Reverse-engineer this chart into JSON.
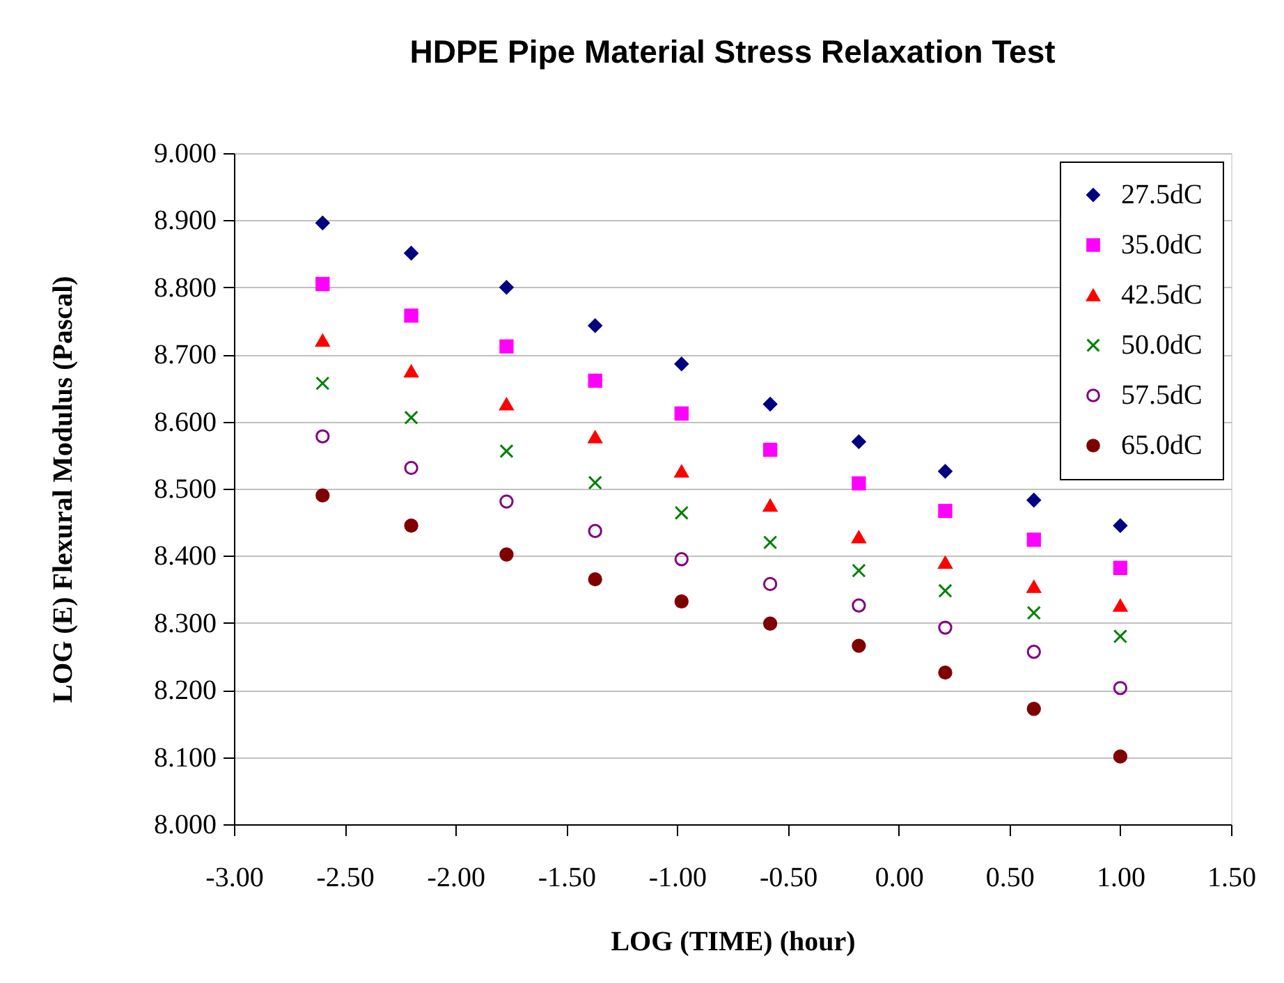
{
  "chart_data": {
    "type": "scatter",
    "title": "HDPE Pipe Material Stress Relaxation Test",
    "xlabel": "LOG (TIME)   (hour)",
    "ylabel": "LOG (E) Flexural Modulus (Pascal)",
    "x": [
      -2.6,
      -2.2,
      -1.77,
      -1.37,
      -0.98,
      -0.58,
      -0.18,
      0.21,
      0.61,
      1.0
    ],
    "series": [
      {
        "name": "27.5dC",
        "color": "#000080",
        "marker": "diamond",
        "values": [
          8.896,
          8.851,
          8.8,
          8.743,
          8.686,
          8.626,
          8.57,
          8.526,
          8.483,
          8.445
        ]
      },
      {
        "name": "35.0dC",
        "color": "#ff00ff",
        "marker": "square",
        "values": [
          8.805,
          8.758,
          8.712,
          8.661,
          8.612,
          8.558,
          8.508,
          8.467,
          8.424,
          8.382
        ]
      },
      {
        "name": "42.5dC",
        "color": "#ff0000",
        "marker": "triangle",
        "values": [
          8.721,
          8.675,
          8.626,
          8.577,
          8.526,
          8.475,
          8.428,
          8.39,
          8.354,
          8.326
        ]
      },
      {
        "name": "50.0dC",
        "color": "#008000",
        "marker": "cross",
        "values": [
          8.657,
          8.606,
          8.556,
          8.509,
          8.464,
          8.42,
          8.378,
          8.348,
          8.315,
          8.28
        ]
      },
      {
        "name": "57.5dC",
        "color": "#800080",
        "marker": "circle-open",
        "values": [
          8.578,
          8.531,
          8.481,
          8.437,
          8.395,
          8.358,
          8.326,
          8.293,
          8.257,
          8.203
        ]
      },
      {
        "name": "65.0dC",
        "color": "#800000",
        "marker": "circle",
        "values": [
          8.49,
          8.445,
          8.402,
          8.365,
          8.332,
          8.299,
          8.266,
          8.226,
          8.172,
          8.101
        ]
      }
    ],
    "xlim": [
      -3,
      1.5
    ],
    "ylim": [
      8,
      9
    ],
    "xticks": [
      {
        "value": -3,
        "label": "-3.00"
      },
      {
        "value": -2.5,
        "label": "-2.50"
      },
      {
        "value": -2,
        "label": "-2.00"
      },
      {
        "value": -1.5,
        "label": "-1.50"
      },
      {
        "value": -1,
        "label": "-1.00"
      },
      {
        "value": -0.5,
        "label": "-0.50"
      },
      {
        "value": 0,
        "label": "0.00"
      },
      {
        "value": 0.5,
        "label": "0.50"
      },
      {
        "value": 1,
        "label": "1.00"
      },
      {
        "value": 1.5,
        "label": "1.50"
      }
    ],
    "yticks": [
      {
        "value": 8,
        "label": "8.000"
      },
      {
        "value": 8.1,
        "label": "8.100"
      },
      {
        "value": 8.2,
        "label": "8.200"
      },
      {
        "value": 8.3,
        "label": "8.300"
      },
      {
        "value": 8.4,
        "label": "8.400"
      },
      {
        "value": 8.5,
        "label": "8.500"
      },
      {
        "value": 8.6,
        "label": "8.600"
      },
      {
        "value": 8.7,
        "label": "8.700"
      },
      {
        "value": 8.8,
        "label": "8.800"
      },
      {
        "value": 8.9,
        "label": "8.900"
      },
      {
        "value": 9,
        "label": "9.000"
      }
    ],
    "grid": "y",
    "legend": "top right"
  }
}
